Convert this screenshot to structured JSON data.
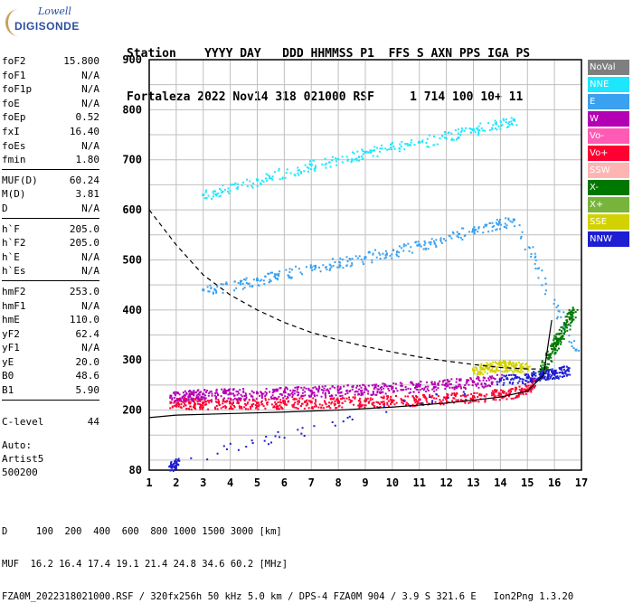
{
  "logo": {
    "line1": "Lowell",
    "line2": "DIGISONDE"
  },
  "header": {
    "row1": "Station    YYYY DAY   DDD HHMMSS P1  FFS S AXN PPS IGA PS",
    "row2": "Fortaleza 2022 Nov14 318 021000 RSF     1 714 100 10+ 11"
  },
  "params": [
    [
      {
        "k": "foF2",
        "v": "15.800"
      },
      {
        "k": "foF1",
        "v": "N/A"
      },
      {
        "k": "foF1p",
        "v": "N/A"
      },
      {
        "k": "foE",
        "v": "N/A"
      },
      {
        "k": "foEp",
        "v": "0.52"
      },
      {
        "k": "fxI",
        "v": "16.40"
      },
      {
        "k": "foEs",
        "v": "N/A"
      },
      {
        "k": "fmin",
        "v": "1.80"
      }
    ],
    [
      {
        "k": "MUF(D)",
        "v": "60.24"
      },
      {
        "k": "M(D)",
        "v": "3.81"
      },
      {
        "k": "D",
        "v": "N/A"
      }
    ],
    [
      {
        "k": "h`F",
        "v": "205.0"
      },
      {
        "k": "h`F2",
        "v": "205.0"
      },
      {
        "k": "h`E",
        "v": "N/A"
      },
      {
        "k": "h`Es",
        "v": "N/A"
      }
    ],
    [
      {
        "k": "hmF2",
        "v": "253.0"
      },
      {
        "k": "hmF1",
        "v": "N/A"
      },
      {
        "k": "hmE",
        "v": "110.0"
      },
      {
        "k": "yF2",
        "v": "62.4"
      },
      {
        "k": "yF1",
        "v": "N/A"
      },
      {
        "k": "yE",
        "v": "20.0"
      },
      {
        "k": "B0",
        "v": "48.6"
      },
      {
        "k": "B1",
        "v": "5.90"
      }
    ]
  ],
  "clevel": {
    "k": "C-level",
    "v": "44"
  },
  "auto": {
    "line1": "Auto:",
    "line2": "Artist5",
    "line3": "500200"
  },
  "legend": [
    {
      "label": "NoVal",
      "color": "#7f7f7f"
    },
    {
      "label": "NNE",
      "color": "#1ee6ff"
    },
    {
      "label": "E",
      "color": "#3aa0f0"
    },
    {
      "label": "W",
      "color": "#b400b4"
    },
    {
      "label": "Vo-",
      "color": "#ff5ab4"
    },
    {
      "label": "Vo+",
      "color": "#ff0032"
    },
    {
      "label": "SSW",
      "color": "#ffb4b4"
    },
    {
      "label": "X-",
      "color": "#007800"
    },
    {
      "label": "X+",
      "color": "#78b43c"
    },
    {
      "label": "SSE",
      "color": "#d2d200"
    },
    {
      "label": "NNW",
      "color": "#1e1ed2"
    }
  ],
  "footer": {
    "line1": "D     100  200  400  600  800 1000 1500 3000 [km]",
    "line2": "MUF  16.2 16.4 17.4 19.1 21.4 24.8 34.6 60.2 [MHz]",
    "line3": "FZA0M_2022318021000.RSF / 320fx256h 50 kHz 5.0 km / DPS-4 FZA0M 904 / 3.9 S 321.6 E   Ion2Png 1.3.20"
  },
  "chart_data": {
    "type": "scatter",
    "xlim": [
      1,
      17
    ],
    "ylim": [
      80,
      900
    ],
    "x_ticks": [
      1,
      2,
      3,
      4,
      5,
      6,
      7,
      8,
      9,
      10,
      11,
      12,
      13,
      14,
      15,
      16,
      17
    ],
    "y_ticks": [
      80,
      200,
      300,
      400,
      500,
      600,
      700,
      800,
      900
    ],
    "grid": true,
    "series": [
      {
        "name": "Vo+",
        "color": "#ff0032",
        "x": [
          1.8,
          2.5,
          3,
          4,
          5,
          6,
          7,
          8,
          9,
          10,
          11,
          12,
          13,
          14,
          14.8,
          15.3
        ],
        "y": [
          215,
          214,
          214,
          214,
          214,
          215,
          216,
          217,
          218,
          219,
          221,
          224,
          227,
          232,
          240,
          258
        ]
      },
      {
        "name": "W",
        "color": "#b400b4",
        "x": [
          1.8,
          2.5,
          3,
          4,
          5,
          6,
          7,
          8,
          9,
          10,
          11,
          12,
          13,
          14
        ],
        "y": [
          228,
          230,
          232,
          233,
          234,
          236,
          238,
          240,
          242,
          245,
          248,
          252,
          256,
          262
        ]
      },
      {
        "name": "X-",
        "color": "#007800",
        "x": [
          15.5,
          15.8,
          16.1,
          16.4,
          16.7
        ],
        "y": [
          280,
          310,
          340,
          370,
          400
        ]
      },
      {
        "name": "SSE",
        "color": "#d2d200",
        "x": [
          13,
          13.5,
          14,
          14.5,
          15
        ],
        "y": [
          280,
          285,
          290,
          288,
          285
        ]
      },
      {
        "name": "NNW",
        "color": "#1e1ed2",
        "x": [
          1.8,
          2,
          14,
          15,
          15.5,
          16,
          16.5
        ],
        "y": [
          88,
          96,
          260,
          265,
          270,
          275,
          280
        ]
      },
      {
        "name": "E",
        "color": "#3aa0f0",
        "x": [
          3,
          5,
          7,
          9,
          11,
          13,
          14.5,
          16.8
        ],
        "y": [
          440,
          460,
          485,
          505,
          530,
          560,
          580,
          320
        ]
      },
      {
        "name": "NNE",
        "color": "#1ee6ff",
        "x": [
          3,
          5,
          7,
          9,
          11,
          13,
          14.5
        ],
        "y": [
          630,
          660,
          690,
          715,
          735,
          760,
          780
        ]
      }
    ],
    "trace_solid": {
      "x": [
        1,
        2,
        4,
        6,
        8,
        10,
        12,
        14,
        15,
        15.6,
        15.9
      ],
      "y": [
        185,
        190,
        193,
        196,
        200,
        206,
        214,
        226,
        238,
        270,
        380
      ]
    },
    "trace_dashed": {
      "x": [
        1,
        2,
        3,
        4,
        5,
        6,
        7,
        8,
        9,
        10,
        11,
        12,
        13,
        14,
        15,
        15.5
      ],
      "y": [
        600,
        530,
        470,
        430,
        400,
        375,
        355,
        340,
        327,
        316,
        306,
        298,
        291,
        285,
        282,
        282
      ]
    }
  }
}
